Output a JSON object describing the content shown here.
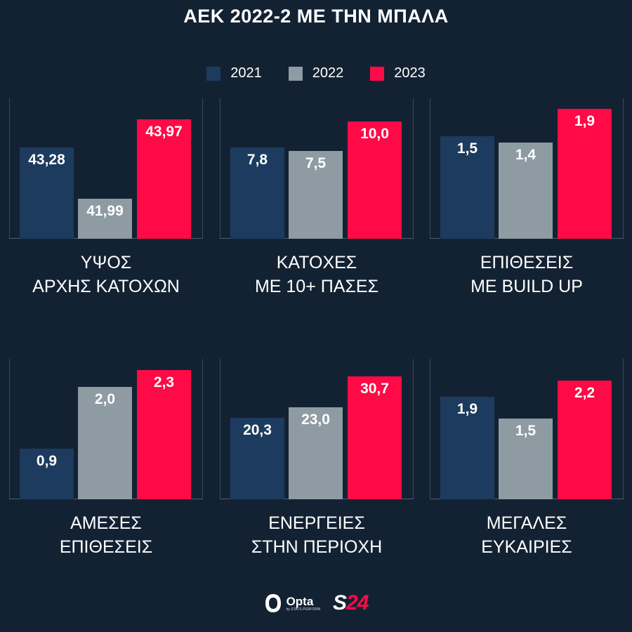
{
  "title": "ΑΕΚ 2022-2 ΜΕ ΤΗΝ ΜΠΑΛΑ",
  "legend": [
    {
      "label": "2021",
      "color": "#1d3b5e"
    },
    {
      "label": "2022",
      "color": "#8e9ba3"
    },
    {
      "label": "2023",
      "color": "#ff0a46"
    }
  ],
  "footer": {
    "opta": "Opta",
    "opta_sub": "by STATS PERFORM",
    "s24_s": "S",
    "s24_n": "24"
  },
  "chart_data": [
    {
      "type": "bar",
      "title": "ΥΨΟΣ\nΑΡΧΗΣ ΚΑΤΟΧΩΝ",
      "categories": [
        "2021",
        "2022",
        "2023"
      ],
      "values": [
        43.28,
        41.99,
        43.97
      ],
      "labels": [
        "43,28",
        "41,99",
        "43,97"
      ],
      "ylim": [
        41.0,
        44.5
      ]
    },
    {
      "type": "bar",
      "title": "ΚΑΤΟΧΕΣ\nΜΕ 10+ ΠΑΣΕΣ",
      "categories": [
        "2021",
        "2022",
        "2023"
      ],
      "values": [
        7.8,
        7.5,
        10.0
      ],
      "labels": [
        "7,8",
        "7,5",
        "10,0"
      ],
      "ylim": [
        0,
        12
      ]
    },
    {
      "type": "bar",
      "title": "ΕΠΙΘΕΣΕΙΣ\nΜΕ BUILD UP",
      "categories": [
        "2021",
        "2022",
        "2023"
      ],
      "values": [
        1.5,
        1.4,
        1.9
      ],
      "labels": [
        "1,5",
        "1,4",
        "1,9"
      ],
      "ylim": [
        0,
        2.05
      ]
    },
    {
      "type": "bar",
      "title": "ΑΜΕΣΕΣ\nΕΠΙΘΕΣΕΙΣ",
      "categories": [
        "2021",
        "2022",
        "2023"
      ],
      "values": [
        0.9,
        2.0,
        2.3
      ],
      "labels": [
        "0,9",
        "2,0",
        "2,3"
      ],
      "ylim": [
        0,
        2.5
      ]
    },
    {
      "type": "bar",
      "title": "ΕΝΕΡΓΕΙΕΣ\nΣΤΗΝ ΠΕΡΙΟΧΗ",
      "categories": [
        "2021",
        "2022",
        "2023"
      ],
      "values": [
        20.3,
        23.0,
        30.7
      ],
      "labels": [
        "20,3",
        "23,0",
        "30,7"
      ],
      "ylim": [
        0,
        35
      ]
    },
    {
      "type": "bar",
      "title": "ΜΕΓΑΛΕΣ\nΕΥΚΑΙΡΙΕΣ",
      "categories": [
        "2021",
        "2022",
        "2023"
      ],
      "values": [
        1.9,
        1.5,
        2.2
      ],
      "labels": [
        "1,9",
        "1,5",
        "2,2"
      ],
      "ylim": [
        0,
        2.6
      ]
    }
  ]
}
